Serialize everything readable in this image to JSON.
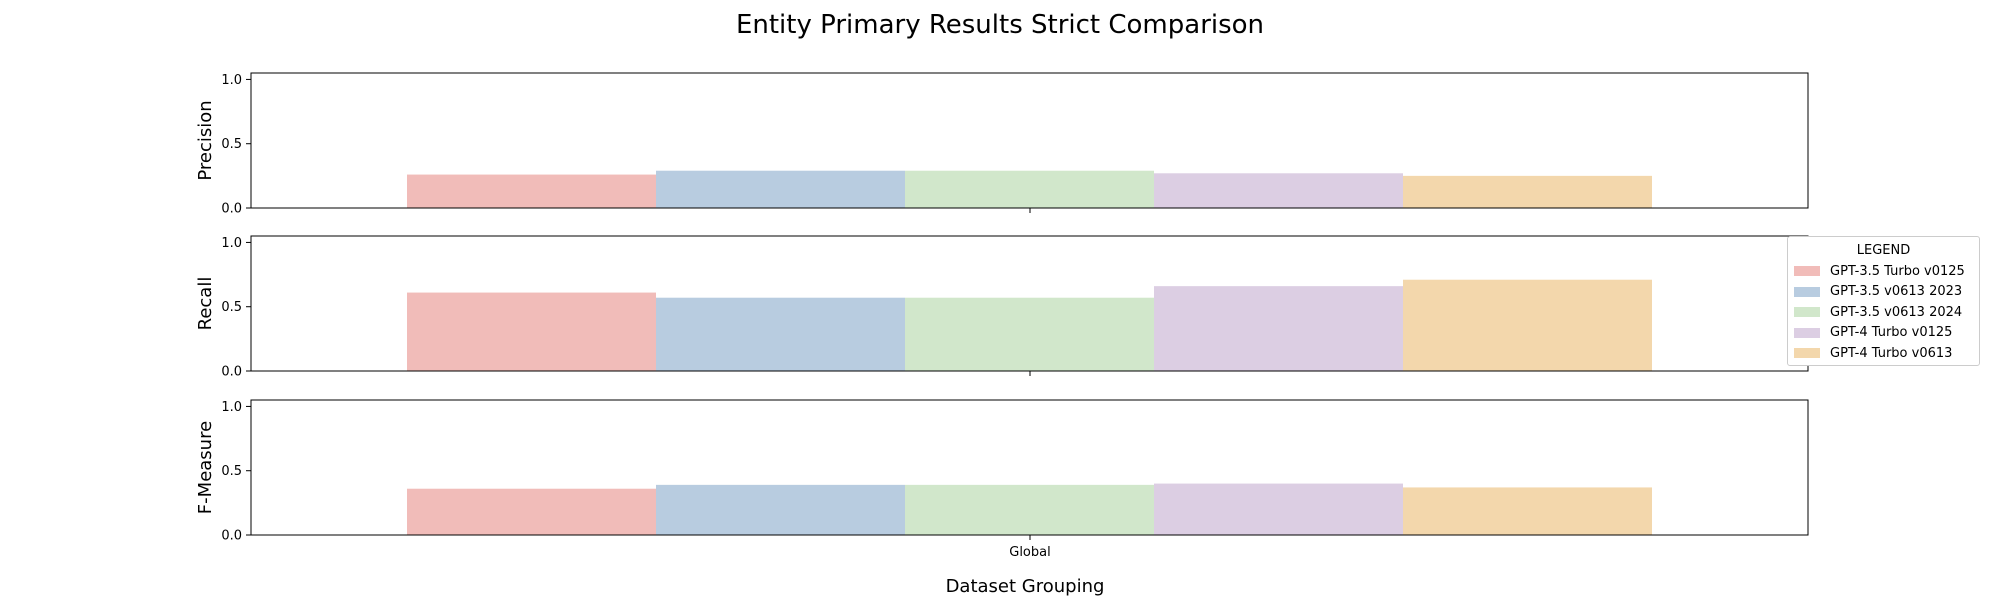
{
  "chart_data": {
    "type": "bar",
    "title": "Entity Primary Results Strict Comparison",
    "xlabel": "Dataset Grouping",
    "categories": [
      "Global"
    ],
    "legend": {
      "title": "LEGEND",
      "placement": "right"
    },
    "series": [
      {
        "name": "GPT-3.5 Turbo v0125",
        "color": "#f1bcb9"
      },
      {
        "name": "GPT-3.5 v0613 2023",
        "color": "#b8cce0"
      },
      {
        "name": "GPT-3.5 v0613 2024",
        "color": "#d1e7cb"
      },
      {
        "name": "GPT-4 Turbo v0125",
        "color": "#dccee3"
      },
      {
        "name": "GPT-4 Turbo v0613",
        "color": "#f3d7ac"
      }
    ],
    "panels": [
      {
        "ylabel": "Precision",
        "ylim": [
          0,
          1.05
        ],
        "yticks": [
          "0.0",
          "0.5",
          "1.0"
        ],
        "values": [
          0.26,
          0.29,
          0.29,
          0.27,
          0.25
        ]
      },
      {
        "ylabel": "Recall",
        "ylim": [
          0,
          1.05
        ],
        "yticks": [
          "0.0",
          "0.5",
          "1.0"
        ],
        "values": [
          0.61,
          0.57,
          0.57,
          0.66,
          0.71
        ]
      },
      {
        "ylabel": "F-Measure",
        "ylim": [
          0,
          1.05
        ],
        "yticks": [
          "0.0",
          "0.5",
          "1.0"
        ],
        "values": [
          0.36,
          0.39,
          0.39,
          0.4,
          0.37
        ]
      }
    ],
    "grid": false
  }
}
